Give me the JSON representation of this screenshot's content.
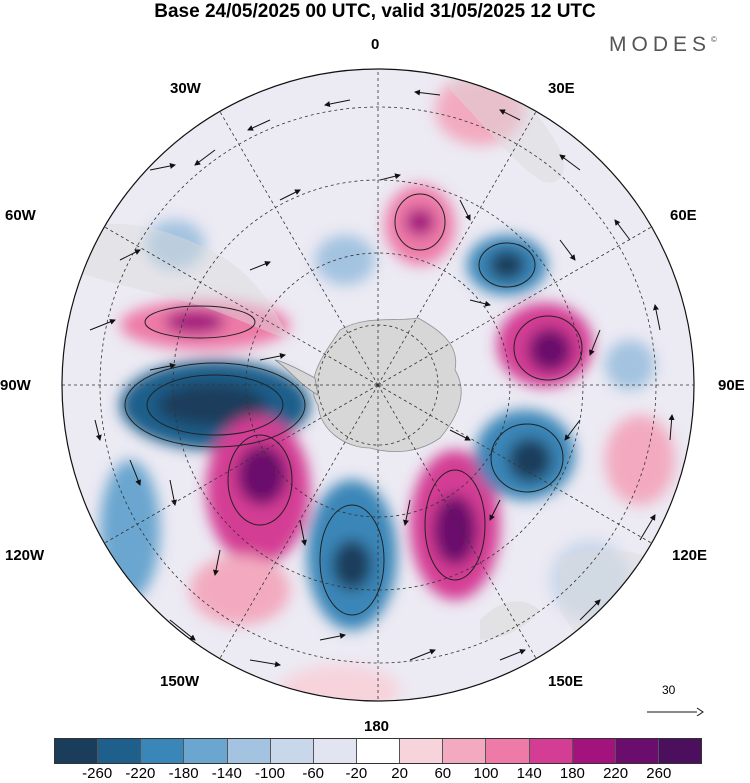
{
  "title": "Base 24/05/2025 00 UTC, valid 31/05/2025 12 UTC",
  "brand": "MODES",
  "brand_mark": "©",
  "longitude_labels": [
    "0",
    "30E",
    "60E",
    "90E",
    "120E",
    "150E",
    "180",
    "150W",
    "120W",
    "90W",
    "60W",
    "30W"
  ],
  "vector_reference": "30",
  "colorbar": {
    "ticks": [
      "-260",
      "-220",
      "-180",
      "-140",
      "-100",
      "-60",
      "-20",
      "20",
      "60",
      "100",
      "140",
      "180",
      "220",
      "260"
    ],
    "colors": [
      "#1b3d5c",
      "#1f5f8b",
      "#3a86b8",
      "#6aa6cf",
      "#a3c3e0",
      "#c9d7ea",
      "#e3e4f1",
      "#ffffff",
      "#f7d3dc",
      "#f3aac0",
      "#ee7aa8",
      "#d43d94",
      "#a3137e",
      "#6a0d6c",
      "#4b0f5e"
    ]
  },
  "colors": {
    "land": "#dcdcdc",
    "antarctica": "#d6d6d6",
    "contour": "#222222"
  }
}
